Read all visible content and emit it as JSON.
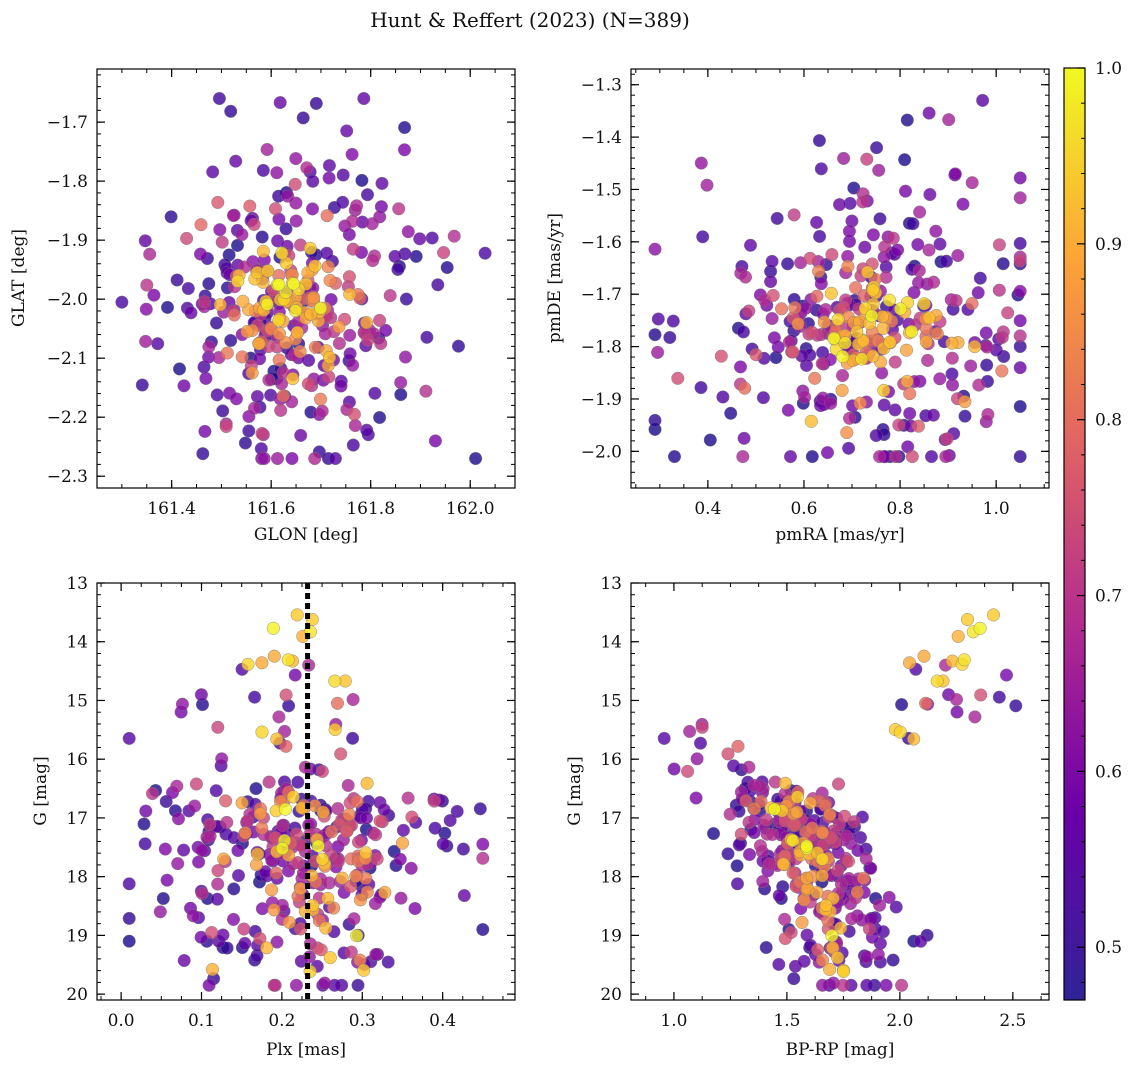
{
  "figure_title": "Hunt & Reffert (2023) (N=389)",
  "colorbar": {
    "min": 0.47,
    "max": 1.0,
    "ticks": [
      0.5,
      0.6,
      0.7,
      0.8,
      0.9,
      1.0
    ],
    "tick_labels": [
      "0.5",
      "0.6",
      "0.7",
      "0.8",
      "0.9",
      "1.0"
    ],
    "colormap": "plasma"
  },
  "point_count": 389,
  "chart_data": [
    {
      "type": "scatter",
      "id": "glon-glat",
      "xlabel": "GLON [deg]",
      "ylabel": "GLAT [deg]",
      "xlim": [
        161.25,
        162.09
      ],
      "ylim": [
        -2.32,
        -1.61
      ],
      "xticks": [
        161.4,
        161.6,
        161.8,
        162.0
      ],
      "xtick_labels": [
        "161.4",
        "161.6",
        "161.8",
        "162.0"
      ],
      "yticks": [
        -2.3,
        -2.2,
        -2.1,
        -2.0,
        -1.9,
        -1.8,
        -1.7
      ],
      "ytick_labels": [
        "−2.3",
        "−2.2",
        "−2.1",
        "−2.0",
        "−1.9",
        "−1.8",
        "−1.7"
      ],
      "center": [
        161.64,
        -2.01
      ],
      "spread": [
        0.1,
        0.1
      ]
    },
    {
      "type": "scatter",
      "id": "pmra-pmde",
      "xlabel": "pmRA [mas/yr]",
      "ylabel": "pmDE [mas/yr]",
      "xlim": [
        0.24,
        1.11
      ],
      "ylim": [
        -2.07,
        -1.27
      ],
      "xticks": [
        0.4,
        0.6,
        0.8,
        1.0
      ],
      "xtick_labels": [
        "0.4",
        "0.6",
        "0.8",
        "1.0"
      ],
      "yticks": [
        -2.0,
        -1.9,
        -1.8,
        -1.7,
        -1.6,
        -1.5,
        -1.4,
        -1.3
      ],
      "ytick_labels": [
        "−2.0",
        "−1.9",
        "−1.8",
        "−1.7",
        "−1.6",
        "−1.5",
        "−1.4",
        "−1.3"
      ],
      "center": [
        0.74,
        -1.76
      ],
      "spread": [
        0.13,
        0.11
      ]
    },
    {
      "type": "scatter",
      "id": "plx-g",
      "xlabel": "Plx [mas]",
      "ylabel": "G [mag]",
      "xlim": [
        -0.03,
        0.49
      ],
      "ylim": [
        20.1,
        13.0
      ],
      "inverted_y": true,
      "xticks": [
        0.0,
        0.1,
        0.2,
        0.3,
        0.4
      ],
      "xtick_labels": [
        "0.0",
        "0.1",
        "0.2",
        "0.3",
        "0.4"
      ],
      "yticks": [
        13,
        14,
        15,
        16,
        17,
        18,
        19,
        20
      ],
      "ytick_labels": [
        "13",
        "14",
        "15",
        "16",
        "17",
        "18",
        "19",
        "20"
      ],
      "reference_line": {
        "axis": "x",
        "value": 0.232,
        "style": "dotted"
      }
    },
    {
      "type": "scatter",
      "id": "bprp-g",
      "xlabel": "BP-RP [mag]",
      "ylabel": "G [mag]",
      "xlim": [
        0.81,
        2.66
      ],
      "ylim": [
        20.1,
        13.0
      ],
      "inverted_y": true,
      "xticks": [
        1.0,
        1.5,
        2.0,
        2.5
      ],
      "xtick_labels": [
        "1.0",
        "1.5",
        "2.0",
        "2.5"
      ],
      "yticks": [
        13,
        14,
        15,
        16,
        17,
        18,
        19,
        20
      ],
      "ytick_labels": [
        "13",
        "14",
        "15",
        "16",
        "17",
        "18",
        "19",
        "20"
      ]
    }
  ]
}
